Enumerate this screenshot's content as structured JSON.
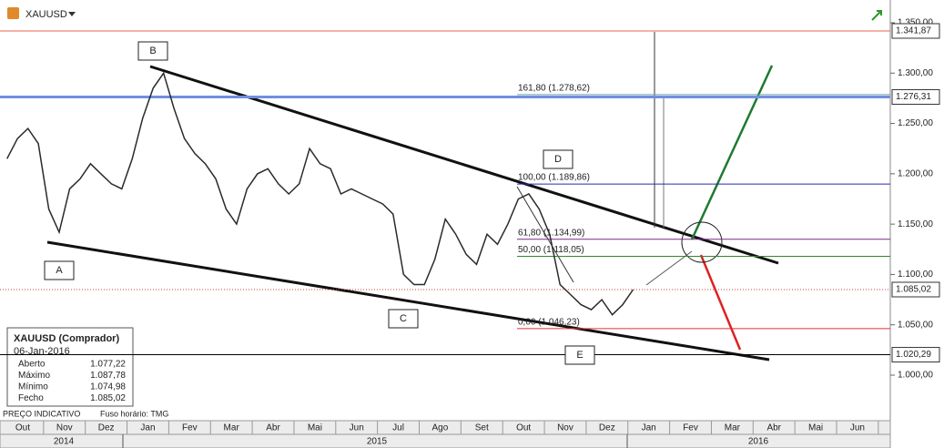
{
  "header": {
    "symbol": "XAUUSD"
  },
  "footer": {
    "note": "PREÇO INDICATIVO",
    "timezone": "Fuso horário: TMG"
  },
  "info_box": {
    "title": "XAUUSD (Comprador)",
    "date": "06-Jan-2016",
    "rows": [
      [
        "Aberto",
        "1.077,22"
      ],
      [
        "Máximo",
        "1.087,78"
      ],
      [
        "Mínimo",
        "1.074,98"
      ],
      [
        "Fecho",
        "1.085,02"
      ]
    ]
  },
  "chart_data": {
    "type": "line",
    "categories": [
      "Out",
      null,
      null,
      null,
      "Nov",
      null,
      null,
      null,
      "Dez",
      null,
      null,
      null,
      "Jan",
      null,
      null,
      null,
      "Fev",
      null,
      null,
      null,
      "Mar",
      null,
      null,
      null,
      "Abr",
      null,
      null,
      null,
      "Mai",
      null,
      null,
      null,
      "Jun",
      null,
      null,
      null,
      "Jul",
      null,
      null,
      null,
      "Ago",
      null,
      null,
      null,
      "Set",
      null,
      null,
      null,
      "Out",
      null,
      null,
      null,
      "Nov",
      null,
      null,
      null,
      "Dez",
      null,
      null,
      null,
      "Jan",
      null,
      null,
      null,
      "Fev",
      null,
      null,
      null,
      "Mar",
      null,
      null,
      null,
      "Abr",
      null,
      null,
      null,
      "Mai",
      null,
      null,
      null,
      "Jun",
      null,
      null,
      null
    ],
    "years": [
      "2014",
      "2015",
      "2016"
    ],
    "series": [
      {
        "name": "XAUUSD",
        "color": "#2a2a2a",
        "values": [
          1215,
          1235,
          1245,
          1230,
          1165,
          1142,
          1185,
          1195,
          1210,
          1200,
          1190,
          1185,
          1215,
          1255,
          1285,
          1300,
          1265,
          1235,
          1220,
          1210,
          1195,
          1165,
          1150,
          1185,
          1200,
          1205,
          1190,
          1180,
          1190,
          1225,
          1210,
          1205,
          1180,
          1185,
          1180,
          1175,
          1170,
          1160,
          1100,
          1090,
          1090,
          1115,
          1155,
          1140,
          1120,
          1110,
          1140,
          1130,
          1150,
          1175,
          1180,
          1165,
          1140,
          1090,
          1080,
          1070,
          1065,
          1075,
          1060,
          1070,
          1085.02,
          null,
          null,
          null,
          null,
          null,
          null,
          null,
          null,
          null,
          null,
          null,
          null,
          null,
          null,
          null,
          null,
          null,
          null,
          null,
          null,
          null,
          null,
          null
        ]
      }
    ],
    "ylim": [
      980,
      1350
    ],
    "yticks": [
      {
        "value": 1000,
        "label": "1.000,00"
      },
      {
        "value": 1050,
        "label": "1.050,00"
      },
      {
        "value": 1100,
        "label": "1.100,00"
      },
      {
        "value": 1150,
        "label": "1.150,00"
      },
      {
        "value": 1200,
        "label": "1.200,00"
      },
      {
        "value": 1250,
        "label": "1.250,00"
      },
      {
        "value": 1300,
        "label": "1.300,00"
      },
      {
        "value": 1350,
        "label": "1.350,00"
      }
    ],
    "levels": [
      {
        "value": 1341.87,
        "label": "1.341,87",
        "color": "#e8634a"
      },
      {
        "value": 1276.31,
        "label": "1.276,31",
        "color": "#6f8fe0"
      },
      {
        "value": 1085.02,
        "label": "1.085,02",
        "color": "#d04040"
      },
      {
        "value": 1020.29,
        "label": "1.020,29",
        "color": "#000000"
      }
    ],
    "fib_levels": [
      {
        "value": 1278.62,
        "label": "161,80 (1.278,62)",
        "color": "#6aa0a8"
      },
      {
        "value": 1189.86,
        "label": "100,00 (1.189,86)",
        "color": "#2a2ab0"
      },
      {
        "value": 1134.99,
        "label": "61,80 (1.134,99)",
        "color": "#7a2a8a"
      },
      {
        "value": 1118.05,
        "label": "50,00 (1.118,05)",
        "color": "#2a8a2a"
      },
      {
        "value": 1046.23,
        "label": "0,00 (1.046,23)",
        "color": "#e03030"
      }
    ],
    "points": [
      "A",
      "B",
      "C",
      "D",
      "E"
    ]
  }
}
